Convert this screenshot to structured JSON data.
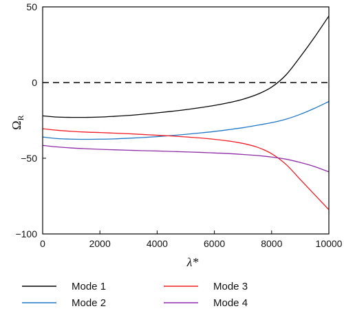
{
  "chart_data": {
    "type": "line",
    "xlabel": "λ*",
    "ylabel": "Ω",
    "ylabel_sub": "R",
    "xlim": [
      0,
      10000
    ],
    "ylim": [
      -100,
      50
    ],
    "x_ticks": [
      0,
      2000,
      4000,
      6000,
      8000,
      10000
    ],
    "y_ticks": [
      50,
      0,
      -50,
      -100
    ],
    "x_tick_labels": [
      "0",
      "2000",
      "4000",
      "6000",
      "8000",
      "10000"
    ],
    "y_tick_labels": [
      "50",
      "0",
      "−50",
      "−100"
    ],
    "grid": false,
    "legend_position": "bottom",
    "reference_line": {
      "y": 0,
      "style": "dashed",
      "color": "#000000"
    },
    "x": [
      0,
      500,
      1000,
      1500,
      2000,
      2500,
      3000,
      3500,
      4000,
      4500,
      5000,
      5500,
      6000,
      6500,
      7000,
      7500,
      8000,
      8500,
      9000,
      9500,
      10000
    ],
    "series": [
      {
        "name": "Mode 1",
        "color": "#000000",
        "values": [
          -22,
          -22.8,
          -23,
          -23,
          -22.8,
          -22.3,
          -21.7,
          -20.9,
          -20.0,
          -19.0,
          -17.9,
          -16.6,
          -15.1,
          -13.3,
          -11.0,
          -7.8,
          -3.0,
          5.0,
          17.0,
          30.0,
          44.0
        ]
      },
      {
        "name": "Mode 2",
        "color": "#1f77c4",
        "values": [
          -36,
          -37,
          -37.4,
          -37.5,
          -37.4,
          -37.2,
          -36.8,
          -36.3,
          -35.7,
          -35.0,
          -34.2,
          -33.3,
          -32.3,
          -31.1,
          -29.8,
          -28.2,
          -26.5,
          -24.2,
          -21.0,
          -17.0,
          -12.5
        ]
      },
      {
        "name": "Mode 3",
        "color": "#ee1c25",
        "values": [
          -30.5,
          -31.5,
          -32.2,
          -32.7,
          -33.0,
          -33.4,
          -33.8,
          -34.3,
          -34.8,
          -35.3,
          -35.9,
          -36.6,
          -37.5,
          -38.6,
          -40.2,
          -42.7,
          -47.0,
          -54.0,
          -64.0,
          -74.0,
          -84.0
        ]
      },
      {
        "name": "Mode 4",
        "color": "#8e2ca6",
        "values": [
          -41.5,
          -42.5,
          -43.2,
          -43.7,
          -44.1,
          -44.4,
          -44.7,
          -45.0,
          -45.2,
          -45.5,
          -45.8,
          -46.1,
          -46.5,
          -46.9,
          -47.5,
          -48.2,
          -49.2,
          -50.6,
          -52.8,
          -55.5,
          -59.0
        ]
      }
    ]
  }
}
